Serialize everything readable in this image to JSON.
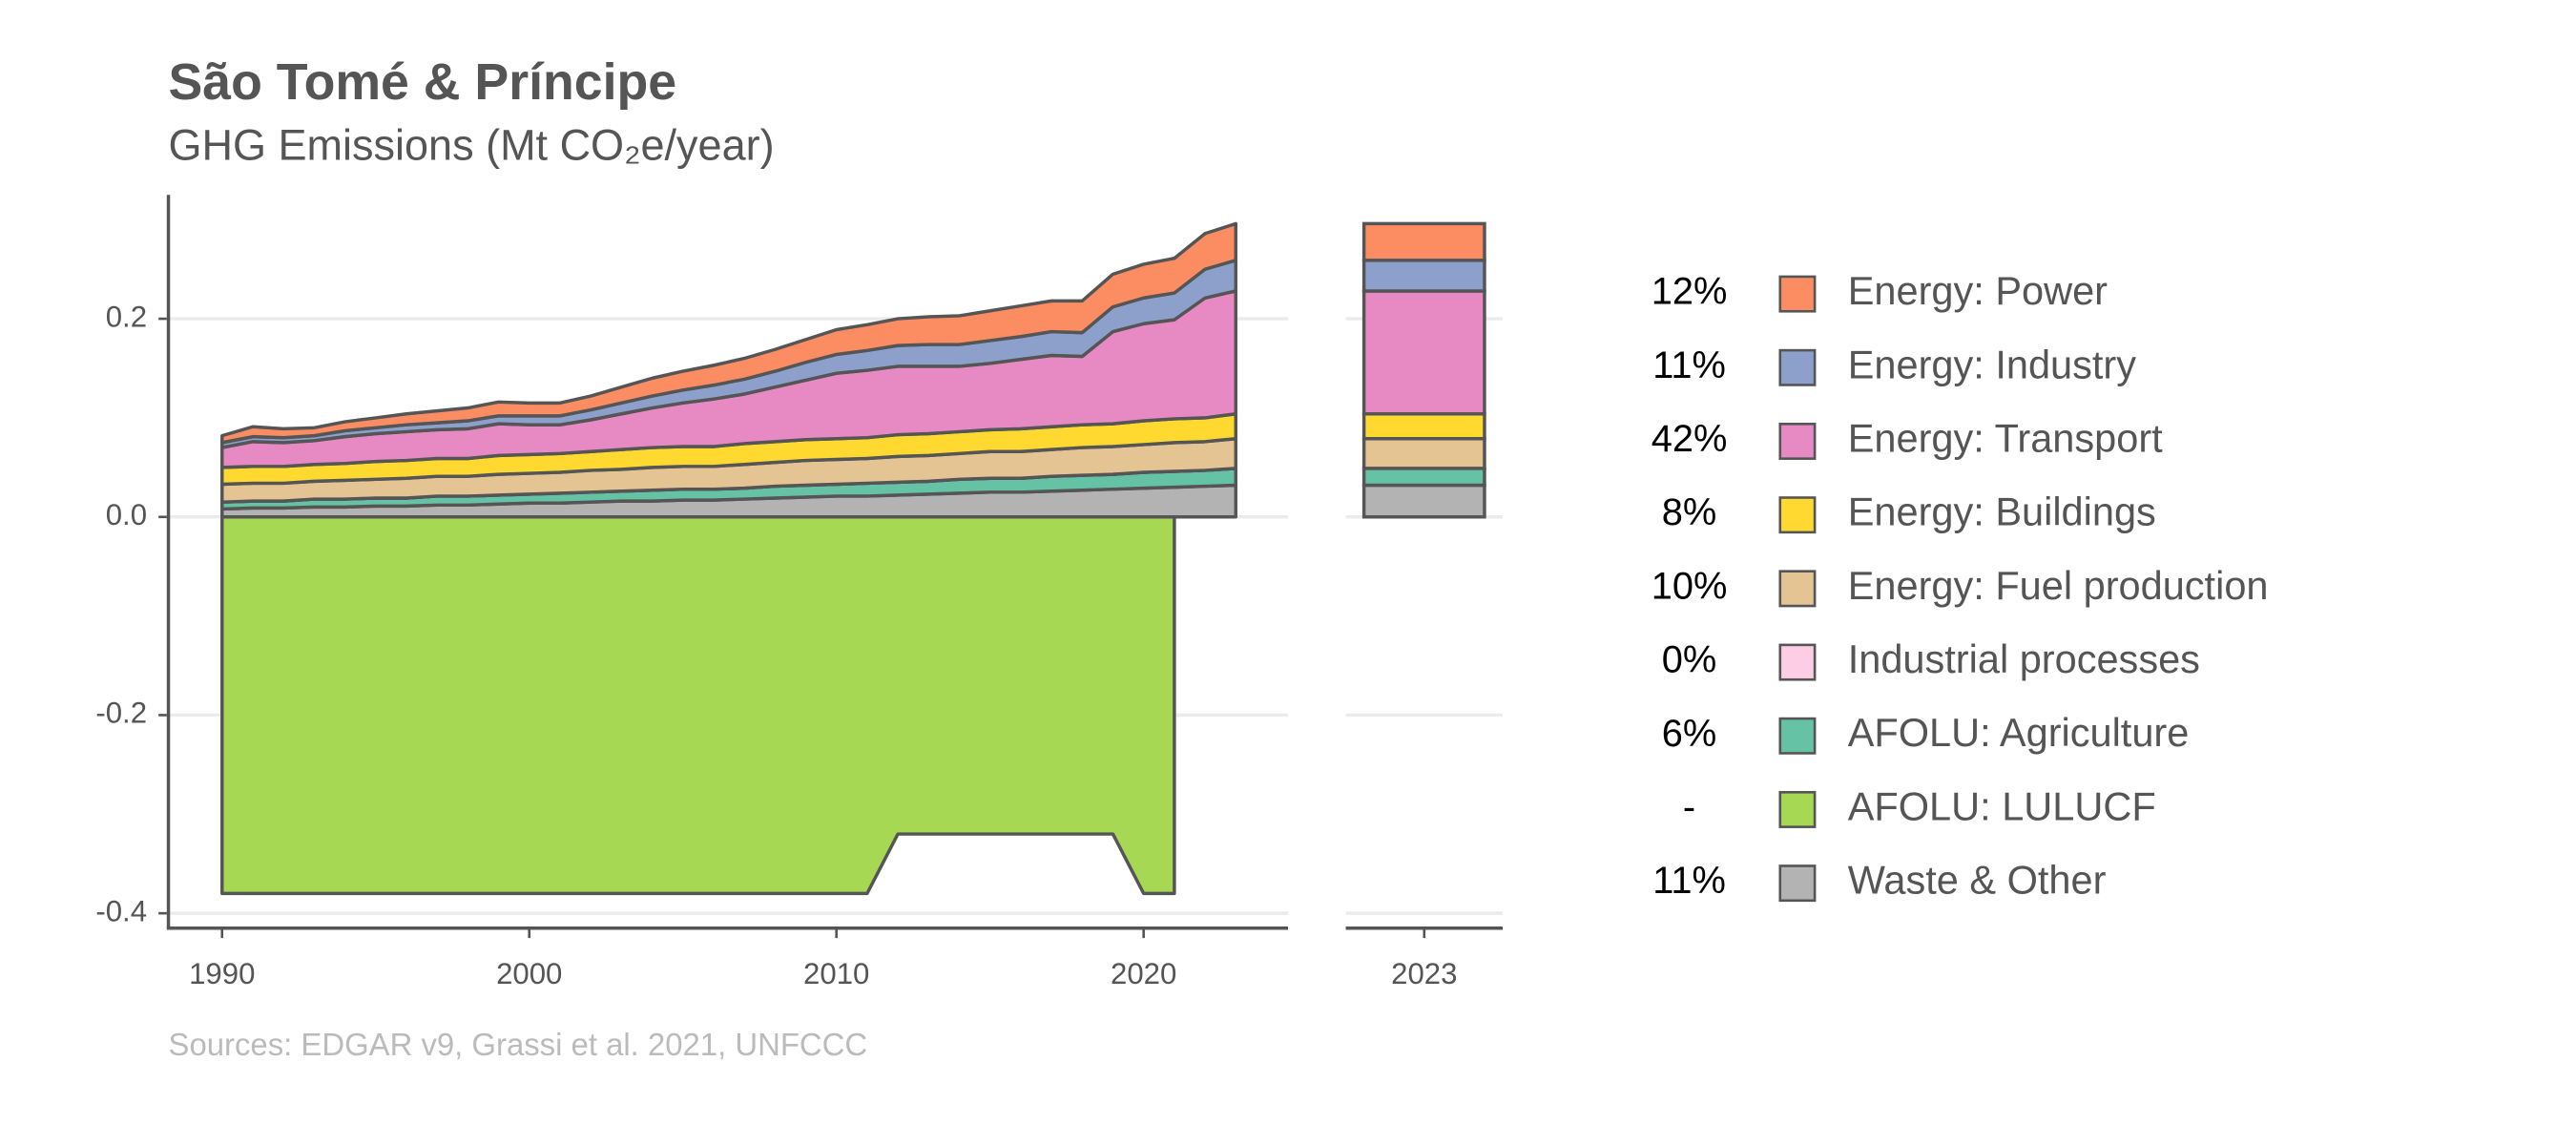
{
  "chart_data": {
    "type": "area",
    "title": "São Tomé & Príncipe",
    "subtitle": "GHG Emissions (Mt CO₂e/year)",
    "source": "Sources: EDGAR v9, Grassi et al. 2021, UNFCCC",
    "x": [
      1990,
      1991,
      1992,
      1993,
      1994,
      1995,
      1996,
      1997,
      1998,
      1999,
      2000,
      2001,
      2002,
      2003,
      2004,
      2005,
      2006,
      2007,
      2008,
      2009,
      2010,
      2011,
      2012,
      2013,
      2014,
      2015,
      2016,
      2017,
      2018,
      2019,
      2020,
      2021,
      2022,
      2023
    ],
    "xlim": [
      1988.2,
      2024.7
    ],
    "xticks": [
      1990,
      2000,
      2010,
      2020
    ],
    "ylim": [
      -0.415,
      0.325
    ],
    "yticks": [
      {
        "value": 0.2,
        "label": "0.2"
      },
      {
        "value": 0,
        "label": "0.0"
      },
      {
        "value": -0.2,
        "label": "-0.2"
      },
      {
        "value": -0.4,
        "label": "-0.4"
      }
    ],
    "grid": true,
    "series": [
      {
        "name": "Energy: Power",
        "share": "12%",
        "color": "#fc8d62",
        "values": [
          0.007,
          0.01,
          0.009,
          0.008,
          0.009,
          0.01,
          0.011,
          0.012,
          0.013,
          0.014,
          0.013,
          0.013,
          0.014,
          0.016,
          0.018,
          0.019,
          0.02,
          0.021,
          0.022,
          0.023,
          0.025,
          0.026,
          0.027,
          0.028,
          0.029,
          0.03,
          0.031,
          0.031,
          0.032,
          0.033,
          0.034,
          0.035,
          0.036,
          0.037
        ]
      },
      {
        "name": "Energy: Industry",
        "share": "11%",
        "color": "#8da0cb",
        "values": [
          0.005,
          0.005,
          0.005,
          0.005,
          0.006,
          0.006,
          0.007,
          0.007,
          0.008,
          0.008,
          0.009,
          0.009,
          0.01,
          0.011,
          0.012,
          0.013,
          0.014,
          0.015,
          0.016,
          0.018,
          0.019,
          0.02,
          0.021,
          0.022,
          0.022,
          0.023,
          0.023,
          0.024,
          0.024,
          0.025,
          0.026,
          0.027,
          0.029,
          0.031
        ]
      },
      {
        "name": "Energy: Transport",
        "share": "42%",
        "color": "#e78ac3",
        "values": [
          0.02,
          0.025,
          0.024,
          0.024,
          0.027,
          0.028,
          0.029,
          0.029,
          0.03,
          0.032,
          0.03,
          0.029,
          0.032,
          0.036,
          0.04,
          0.044,
          0.048,
          0.05,
          0.055,
          0.06,
          0.066,
          0.068,
          0.069,
          0.068,
          0.066,
          0.067,
          0.07,
          0.072,
          0.069,
          0.093,
          0.098,
          0.1,
          0.121,
          0.124
        ]
      },
      {
        "name": "Energy: Buildings",
        "share": "8%",
        "color": "#ffd92f",
        "values": [
          0.017,
          0.017,
          0.017,
          0.017,
          0.017,
          0.018,
          0.018,
          0.018,
          0.018,
          0.019,
          0.019,
          0.019,
          0.019,
          0.02,
          0.02,
          0.02,
          0.02,
          0.021,
          0.021,
          0.021,
          0.021,
          0.021,
          0.022,
          0.022,
          0.022,
          0.022,
          0.023,
          0.023,
          0.023,
          0.023,
          0.024,
          0.024,
          0.024,
          0.025
        ]
      },
      {
        "name": "Energy: Fuel production",
        "share": "10%",
        "color": "#e5c494",
        "values": [
          0.018,
          0.018,
          0.018,
          0.018,
          0.019,
          0.019,
          0.02,
          0.02,
          0.02,
          0.021,
          0.021,
          0.021,
          0.022,
          0.022,
          0.023,
          0.023,
          0.023,
          0.024,
          0.024,
          0.025,
          0.025,
          0.025,
          0.026,
          0.026,
          0.026,
          0.027,
          0.027,
          0.027,
          0.028,
          0.028,
          0.028,
          0.029,
          0.029,
          0.03
        ]
      },
      {
        "name": "Industrial processes",
        "share": "0%",
        "color": "#fccde5",
        "values": [
          0,
          0,
          0,
          0,
          0,
          0,
          0,
          0,
          0,
          0,
          0,
          0,
          0,
          0,
          0,
          0,
          0,
          0,
          0,
          0,
          0,
          0,
          0,
          0,
          0,
          0,
          0,
          0,
          0,
          0,
          0,
          0,
          0,
          0
        ]
      },
      {
        "name": "AFOLU: Agriculture",
        "share": "6%",
        "color": "#66c2a5",
        "values": [
          0.007,
          0.007,
          0.007,
          0.008,
          0.008,
          0.008,
          0.008,
          0.009,
          0.009,
          0.009,
          0.009,
          0.01,
          0.01,
          0.01,
          0.011,
          0.011,
          0.011,
          0.011,
          0.012,
          0.012,
          0.012,
          0.013,
          0.013,
          0.013,
          0.014,
          0.014,
          0.014,
          0.015,
          0.015,
          0.015,
          0.016,
          0.016,
          0.016,
          0.017
        ]
      },
      {
        "name": "AFOLU: LULUCF",
        "share": "-",
        "color": "#a6d854",
        "values": [
          -0.38,
          -0.38,
          -0.38,
          -0.38,
          -0.38,
          -0.38,
          -0.38,
          -0.38,
          -0.38,
          -0.38,
          -0.38,
          -0.38,
          -0.38,
          -0.38,
          -0.38,
          -0.38,
          -0.38,
          -0.38,
          -0.38,
          -0.38,
          -0.38,
          -0.38,
          -0.32,
          -0.32,
          -0.32,
          -0.32,
          -0.32,
          -0.32,
          -0.32,
          -0.32,
          -0.38,
          -0.38,
          null,
          null
        ]
      },
      {
        "name": "Waste & Other",
        "share": "11%",
        "color": "#b3b3b3",
        "values": [
          0.008,
          0.009,
          0.009,
          0.01,
          0.01,
          0.011,
          0.011,
          0.012,
          0.012,
          0.013,
          0.014,
          0.014,
          0.015,
          0.016,
          0.016,
          0.017,
          0.017,
          0.018,
          0.019,
          0.02,
          0.021,
          0.021,
          0.022,
          0.023,
          0.024,
          0.025,
          0.025,
          0.026,
          0.027,
          0.028,
          0.029,
          0.03,
          0.031,
          0.032
        ]
      }
    ]
  }
}
